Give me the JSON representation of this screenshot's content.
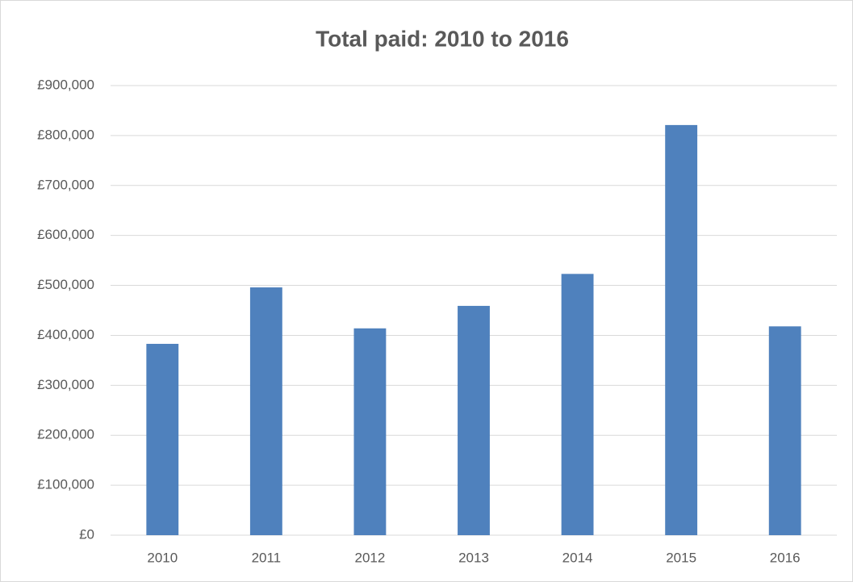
{
  "chart_data": {
    "type": "bar",
    "title": "Total paid: 2010 to 2016",
    "categories": [
      "2010",
      "2011",
      "2012",
      "2013",
      "2014",
      "2015",
      "2016"
    ],
    "values": [
      383000,
      496000,
      414000,
      459000,
      523000,
      821000,
      418000
    ],
    "color": "#4f81bd",
    "ylim": [
      0,
      900000
    ],
    "yticks": [
      {
        "value": 0,
        "label": "£0"
      },
      {
        "value": 100000,
        "label": "£100,000"
      },
      {
        "value": 200000,
        "label": "£200,000"
      },
      {
        "value": 300000,
        "label": "£300,000"
      },
      {
        "value": 400000,
        "label": "£400,000"
      },
      {
        "value": 500000,
        "label": "£500,000"
      },
      {
        "value": 600000,
        "label": "£600,000"
      },
      {
        "value": 700000,
        "label": "£700,000"
      },
      {
        "value": 800000,
        "label": "£800,000"
      },
      {
        "value": 900000,
        "label": "£900,000"
      }
    ],
    "grid": true
  }
}
